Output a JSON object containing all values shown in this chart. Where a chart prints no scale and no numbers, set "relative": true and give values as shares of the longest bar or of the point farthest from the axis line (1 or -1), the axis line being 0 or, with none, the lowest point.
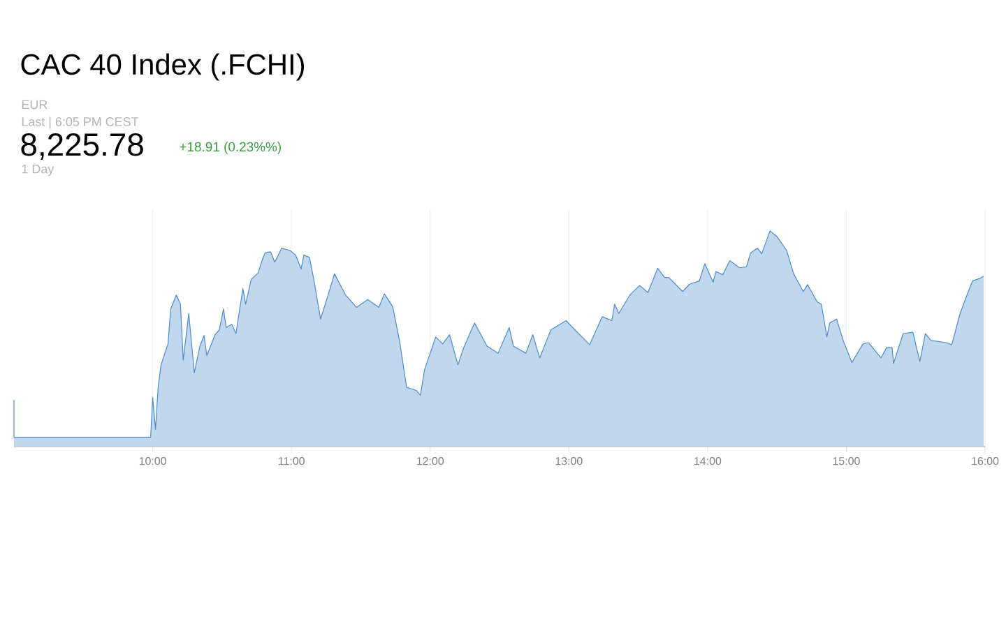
{
  "chart_data": {
    "type": "area",
    "title": "CAC 40 Index (.FCHI)",
    "relative": true,
    "annotations": [
      "EUR",
      "Last | 6:05 PM CEST",
      "8,225.78",
      "+18.91 (0.23%%)",
      "1 Day"
    ],
    "xlim": [
      9,
      16
    ],
    "xticks": [
      {
        "value": 10,
        "label": "10:00"
      },
      {
        "value": 11,
        "label": "11:00"
      },
      {
        "value": 12,
        "label": "12:00"
      },
      {
        "value": 13,
        "label": "13:00"
      },
      {
        "value": 14,
        "label": "14:00"
      },
      {
        "value": 15,
        "label": "15:00"
      },
      {
        "value": 16,
        "label": "16:00"
      }
    ],
    "grid": "x",
    "series": [
      {
        "color": "#4a8ccc",
        "x": [
          9.0,
          9.0,
          9.985,
          10.0,
          10.02,
          10.04,
          10.06,
          10.11,
          10.13,
          10.17,
          10.2,
          10.22,
          10.26,
          10.3,
          10.34,
          10.37,
          10.39,
          10.45,
          10.48,
          10.51,
          10.53,
          10.57,
          10.6,
          10.65,
          10.67,
          10.71,
          10.76,
          10.79,
          10.81,
          10.85,
          10.88,
          10.93,
          10.99,
          11.03,
          11.07,
          11.09,
          11.13,
          11.16,
          11.21,
          11.26,
          11.31,
          11.39,
          11.47,
          11.55,
          11.63,
          11.67,
          11.73,
          11.78,
          11.83,
          11.9,
          11.93,
          11.96,
          12.04,
          12.09,
          12.14,
          12.2,
          12.24,
          12.32,
          12.41,
          12.49,
          12.57,
          12.6,
          12.69,
          12.74,
          12.79,
          12.87,
          12.98,
          13.05,
          13.15,
          13.24,
          13.31,
          13.33,
          13.36,
          13.44,
          13.51,
          13.57,
          13.64,
          13.69,
          13.72,
          13.82,
          13.87,
          13.94,
          13.98,
          14.04,
          14.06,
          14.11,
          14.16,
          14.23,
          14.28,
          14.31,
          14.36,
          14.39,
          14.45,
          14.5,
          14.57,
          14.62,
          14.69,
          14.72,
          14.79,
          14.82,
          14.86,
          14.88,
          14.93,
          14.98,
          15.04,
          15.12,
          15.16,
          15.25,
          15.29,
          15.33,
          15.34,
          15.41,
          15.48,
          15.53,
          15.57,
          15.61,
          15.72,
          15.76,
          15.82,
          15.87,
          15.91,
          15.96,
          15.99
        ],
        "values": [
          0.216,
          0.043,
          0.043,
          0.227,
          0.08,
          0.281,
          0.379,
          0.476,
          0.638,
          0.703,
          0.66,
          0.401,
          0.617,
          0.342,
          0.466,
          0.515,
          0.422,
          0.519,
          0.541,
          0.638,
          0.552,
          0.567,
          0.524,
          0.732,
          0.66,
          0.775,
          0.805,
          0.866,
          0.898,
          0.903,
          0.855,
          0.92,
          0.909,
          0.888,
          0.823,
          0.888,
          0.877,
          0.779,
          0.591,
          0.693,
          0.801,
          0.703,
          0.645,
          0.682,
          0.645,
          0.708,
          0.649,
          0.487,
          0.275,
          0.26,
          0.238,
          0.357,
          0.508,
          0.476,
          0.519,
          0.379,
          0.455,
          0.573,
          0.466,
          0.433,
          0.552,
          0.466,
          0.433,
          0.519,
          0.411,
          0.541,
          0.584,
          0.537,
          0.472,
          0.602,
          0.584,
          0.66,
          0.617,
          0.703,
          0.747,
          0.714,
          0.827,
          0.784,
          0.784,
          0.719,
          0.753,
          0.768,
          0.848,
          0.762,
          0.812,
          0.797,
          0.862,
          0.829,
          0.833,
          0.898,
          0.92,
          0.894,
          1.0,
          0.974,
          0.909,
          0.801,
          0.719,
          0.751,
          0.671,
          0.66,
          0.508,
          0.573,
          0.591,
          0.487,
          0.39,
          0.476,
          0.482,
          0.411,
          0.459,
          0.459,
          0.385,
          0.524,
          0.53,
          0.394,
          0.524,
          0.492,
          0.482,
          0.472,
          0.617,
          0.703,
          0.768,
          0.779,
          0.79
        ]
      }
    ]
  }
}
